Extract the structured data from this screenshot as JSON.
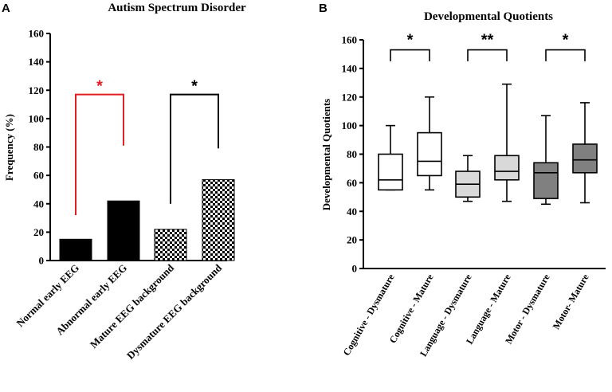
{
  "chart_data": [
    {
      "panel": "A",
      "type": "bar",
      "title": "Autism Spectrum Disorder",
      "xlabel": "",
      "ylabel": "Frequency (%)",
      "ylim": [
        0,
        160
      ],
      "yticks": [
        0,
        20,
        40,
        60,
        80,
        100,
        120,
        140,
        160
      ],
      "categories": [
        "Normal early EEG",
        "Abnormal early EEG",
        "Mature EEG background",
        "Dysmature EEG background"
      ],
      "values": [
        15,
        42,
        22,
        57
      ],
      "fills": [
        "solid",
        "solid",
        "checkered",
        "checkered"
      ],
      "bar_color": "#000000",
      "significance": [
        {
          "from": 0,
          "to": 1,
          "label": "*",
          "color": "#e31e24",
          "left_y": 32,
          "right_y": 81,
          "top_y": 117
        },
        {
          "from": 2,
          "to": 3,
          "label": "*",
          "color": "#000000",
          "left_y": 40,
          "right_y": 79,
          "top_y": 117
        }
      ]
    },
    {
      "panel": "B",
      "type": "boxplot",
      "title": "Developmental Quotients",
      "xlabel": "",
      "ylabel": "Developmental Quotients",
      "ylim": [
        0,
        160
      ],
      "yticks": [
        0,
        20,
        40,
        60,
        80,
        100,
        120,
        140,
        160
      ],
      "categories": [
        "Cognitive - Dysmature",
        "Cognitive - Mature",
        "Language - Dysmature",
        "Language - Mature",
        "Motor - Dysmature",
        "Motor- Mature"
      ],
      "boxes": [
        {
          "min": 55,
          "q1": 55,
          "median": 62,
          "q3": 80,
          "max": 100,
          "fill": "#ffffff"
        },
        {
          "min": 55,
          "q1": 65,
          "median": 75,
          "q3": 95,
          "max": 120,
          "fill": "#ffffff"
        },
        {
          "min": 47,
          "q1": 50,
          "median": 59,
          "q3": 68,
          "max": 79,
          "fill": "#d9d9d9"
        },
        {
          "min": 47,
          "q1": 62,
          "median": 68,
          "q3": 79,
          "max": 129,
          "fill": "#d9d9d9"
        },
        {
          "min": 45,
          "q1": 49,
          "median": 67,
          "q3": 74,
          "max": 107,
          "fill": "#808080"
        },
        {
          "min": 46,
          "q1": 67,
          "median": 76,
          "q3": 87,
          "max": 116,
          "fill": "#808080"
        }
      ],
      "significance": [
        {
          "from": 0,
          "to": 1,
          "label": "*",
          "color": "#000000",
          "y": 153,
          "drop": 145
        },
        {
          "from": 2,
          "to": 3,
          "label": "**",
          "color": "#000000",
          "y": 153,
          "drop": 145
        },
        {
          "from": 4,
          "to": 5,
          "label": "*",
          "color": "#000000",
          "y": 153,
          "drop": 145
        }
      ]
    }
  ],
  "panels": {
    "a_letter": "A",
    "b_letter": "B"
  }
}
